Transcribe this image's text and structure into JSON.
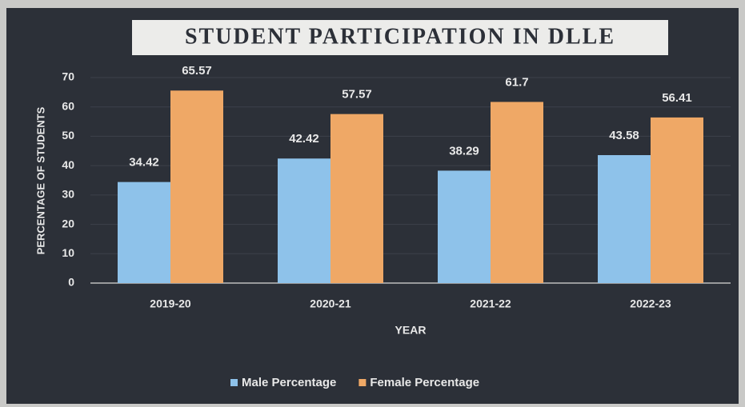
{
  "chart_data": {
    "type": "bar",
    "title": "STUDENT PARTICIPATION IN DLLE",
    "categories": [
      "2019-20",
      "2020-21",
      "2021-22",
      "2022-23"
    ],
    "series": [
      {
        "name": "Male Percentage",
        "color": "#8ec2ea",
        "values": [
          34.42,
          42.42,
          38.29,
          43.58
        ]
      },
      {
        "name": "Female Percentage",
        "color": "#ef a866",
        "values": [
          65.57,
          57.57,
          61.7,
          56.41
        ]
      }
    ],
    "x_label": "YEAR",
    "y_label": "PERCENTAGE OF STUDENTS",
    "ylim": [
      0,
      70
    ],
    "yticks": [
      0,
      10,
      20,
      30,
      40,
      50,
      60,
      70
    ],
    "grid": true,
    "legend": "bottom"
  }
}
